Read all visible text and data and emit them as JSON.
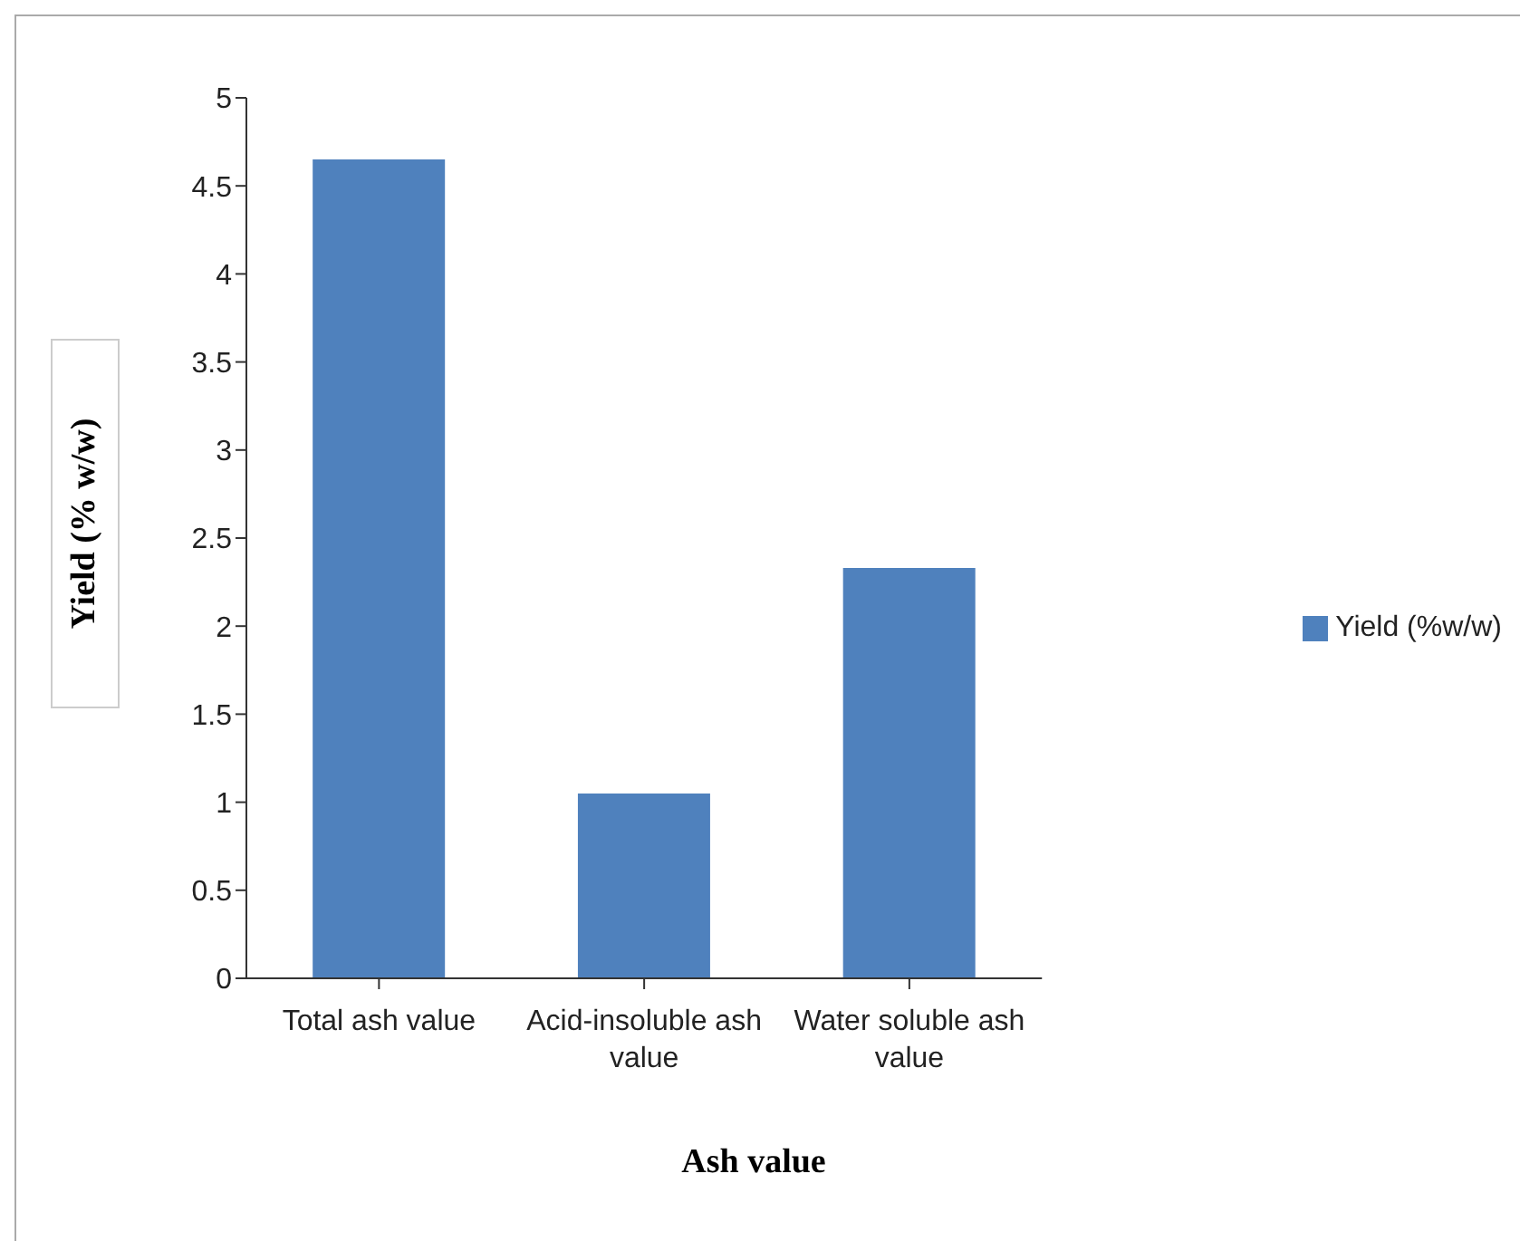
{
  "chart_data": {
    "type": "bar",
    "xlabel": "Ash value",
    "ylabel": "Yield (% w/w)",
    "categories": [
      "Total ash value",
      "Acid-insoluble ash value",
      "Water soluble ash value"
    ],
    "series": [
      {
        "name": "Yield (%w/w)",
        "color": "#4f81bd",
        "values": [
          4.65,
          1.05,
          2.33
        ]
      }
    ],
    "ylim": [
      0,
      5
    ],
    "yticks": [
      0,
      0.5,
      1,
      1.5,
      2,
      2.5,
      3,
      3.5,
      4,
      4.5,
      5
    ],
    "grid": false,
    "legend": "right"
  }
}
